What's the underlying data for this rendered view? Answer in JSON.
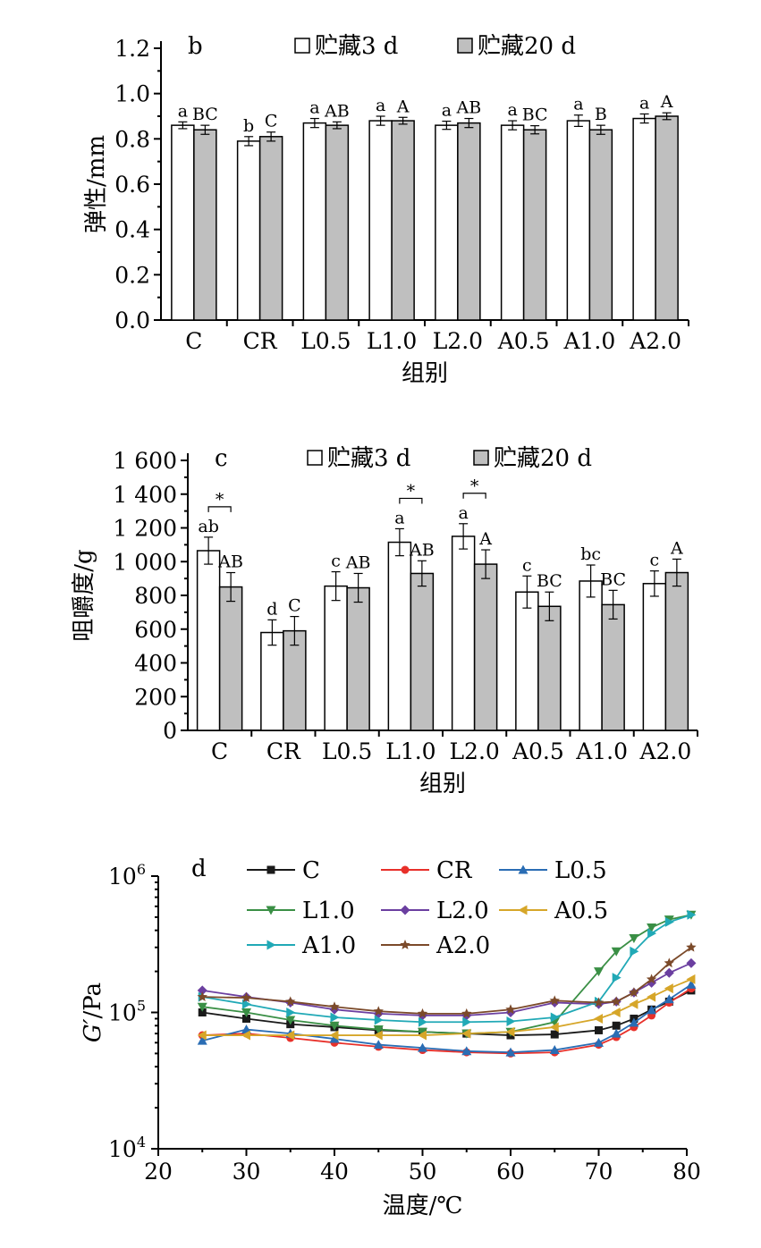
{
  "chart_data": [
    {
      "type": "bar",
      "panel_label": "b",
      "categories": [
        "C",
        "CR",
        "L0.5",
        "L1.0",
        "L2.0",
        "A0.5",
        "A1.0",
        "A2.0"
      ],
      "ylabel": "弹性/mm",
      "xlabel": "组别",
      "ylim": [
        0,
        1.2
      ],
      "yticks": [
        "0.0",
        "0.2",
        "0.4",
        "0.6",
        "0.8",
        "1.0",
        "1.2"
      ],
      "series": [
        {
          "name": "贮藏3 d",
          "color": "#ffffff",
          "values": [
            0.86,
            0.79,
            0.87,
            0.88,
            0.86,
            0.86,
            0.88,
            0.89
          ],
          "errors": [
            0.015,
            0.02,
            0.02,
            0.02,
            0.018,
            0.02,
            0.025,
            0.02
          ],
          "labels": [
            "a",
            "b",
            "a",
            "a",
            "a",
            "a",
            "a",
            "a"
          ]
        },
        {
          "name": "贮藏20 d",
          "color": "#bfbfbf",
          "values": [
            0.84,
            0.81,
            0.86,
            0.88,
            0.87,
            0.84,
            0.84,
            0.9
          ],
          "errors": [
            0.02,
            0.02,
            0.015,
            0.015,
            0.02,
            0.018,
            0.02,
            0.015
          ],
          "labels": [
            "BC",
            "C",
            "AB",
            "A",
            "AB",
            "BC",
            "B",
            "A"
          ]
        }
      ]
    },
    {
      "type": "bar",
      "panel_label": "c",
      "categories": [
        "C",
        "CR",
        "L0.5",
        "L1.0",
        "L2.0",
        "A0.5",
        "A1.0",
        "A2.0"
      ],
      "ylabel": "咀嚼度/g",
      "xlabel": "组别",
      "ylim": [
        0,
        1600
      ],
      "yticks": [
        "0",
        "200",
        "400",
        "600",
        "800",
        "1 000",
        "1 200",
        "1 400",
        "1 600"
      ],
      "significance_mark": "*",
      "significance_groups": [
        "C",
        "L1.0",
        "L2.0"
      ],
      "series": [
        {
          "name": "贮藏3 d",
          "color": "#ffffff",
          "values": [
            1065,
            580,
            855,
            1115,
            1150,
            820,
            885,
            870
          ],
          "errors": [
            80,
            75,
            85,
            80,
            75,
            95,
            95,
            75
          ],
          "labels": [
            "ab",
            "d",
            "c",
            "a",
            "a",
            "c",
            "bc",
            "c"
          ]
        },
        {
          "name": "贮藏20 d",
          "color": "#bfbfbf",
          "values": [
            850,
            590,
            845,
            930,
            985,
            735,
            745,
            935
          ],
          "errors": [
            85,
            85,
            85,
            75,
            85,
            85,
            85,
            80
          ],
          "labels": [
            "AB",
            "C",
            "AB",
            "AB",
            "A",
            "BC",
            "BC",
            "A"
          ]
        }
      ]
    },
    {
      "type": "line",
      "panel_label": "d",
      "ylabel_main": "G′",
      "ylabel_unit": "/Pa",
      "xlabel": "温度/℃",
      "xlim": [
        20,
        80
      ],
      "xticks": [
        "20",
        "30",
        "40",
        "50",
        "60",
        "70",
        "80"
      ],
      "ylim": [
        10000,
        1000000
      ],
      "yscale": "log",
      "yticks": [
        {
          "base": "10",
          "exp": "4"
        },
        {
          "base": "10",
          "exp": "5"
        },
        {
          "base": "10",
          "exp": "6"
        }
      ],
      "x": [
        25,
        30,
        35,
        40,
        45,
        50,
        55,
        60,
        65,
        70,
        72,
        74,
        76,
        78,
        80.5
      ],
      "series": [
        {
          "name": "C",
          "color": "#1a1a1a",
          "marker": "square",
          "values": [
            100000,
            90000,
            82000,
            78000,
            74000,
            72000,
            70000,
            68000,
            69000,
            74000,
            80000,
            90000,
            105000,
            120000,
            145000
          ]
        },
        {
          "name": "CR",
          "color": "#e8302a",
          "marker": "circle",
          "values": [
            68000,
            70000,
            65000,
            60000,
            56000,
            53000,
            51000,
            50000,
            51000,
            58000,
            66000,
            78000,
            95000,
            118000,
            150000
          ]
        },
        {
          "name": "L0.5",
          "color": "#2a6db4",
          "marker": "triangle-up",
          "values": [
            62000,
            75000,
            70000,
            64000,
            58000,
            55000,
            52000,
            51000,
            53000,
            60000,
            70000,
            84000,
            104000,
            125000,
            160000
          ]
        },
        {
          "name": "L1.0",
          "color": "#3a8f45",
          "marker": "triangle-down",
          "values": [
            110000,
            100000,
            88000,
            80000,
            75000,
            72000,
            70000,
            72000,
            85000,
            200000,
            280000,
            350000,
            420000,
            480000,
            520000
          ]
        },
        {
          "name": "L2.0",
          "color": "#6b3fa0",
          "marker": "diamond",
          "values": [
            145000,
            130000,
            118000,
            105000,
            98000,
            95000,
            95000,
            100000,
            118000,
            115000,
            120000,
            140000,
            165000,
            195000,
            230000
          ]
        },
        {
          "name": "A0.5",
          "color": "#d6a629",
          "marker": "triangle-left",
          "values": [
            68000,
            68000,
            68000,
            68000,
            68000,
            68000,
            70000,
            72000,
            78000,
            90000,
            100000,
            115000,
            130000,
            150000,
            175000
          ]
        },
        {
          "name": "A1.0",
          "color": "#21a9b6",
          "marker": "triangle-right",
          "values": [
            130000,
            115000,
            100000,
            92000,
            88000,
            85000,
            85000,
            86000,
            92000,
            120000,
            180000,
            280000,
            380000,
            460000,
            520000
          ]
        },
        {
          "name": "A2.0",
          "color": "#7b4a2a",
          "marker": "star",
          "values": [
            130000,
            128000,
            120000,
            110000,
            102000,
            98000,
            98000,
            105000,
            122000,
            118000,
            120000,
            140000,
            175000,
            230000,
            300000
          ]
        }
      ]
    }
  ]
}
